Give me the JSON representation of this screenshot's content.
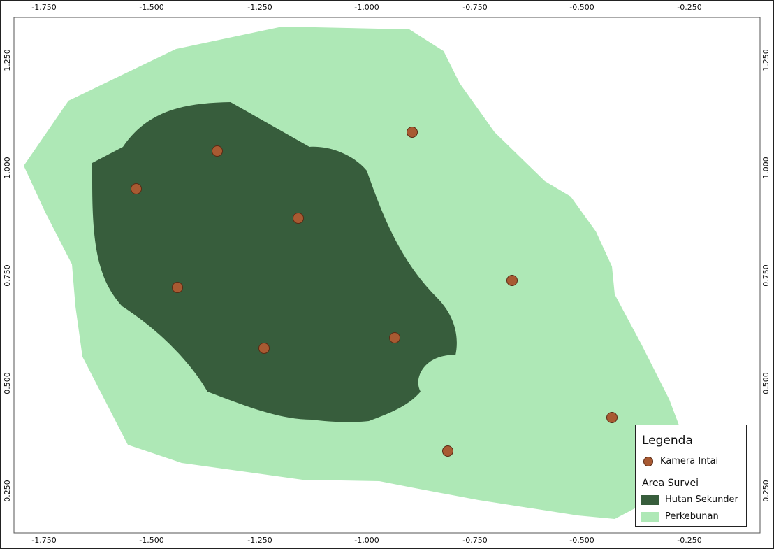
{
  "map": {
    "x_ticks": [
      "-1.750",
      "-1.500",
      "-1.250",
      "-1.000",
      "-0.750",
      "-0.500",
      "-0.250"
    ],
    "y_ticks": [
      "1.250",
      "1.000",
      "0.750",
      "0.500",
      "0.250"
    ]
  },
  "colors": {
    "perkebunan": "#aee8b6",
    "hutan_sekunder": "#375d3c",
    "kamera_intai": "#a85a32"
  },
  "camera_count": 10,
  "legend": {
    "title": "Legenda",
    "camera_label": "Kamera Intai",
    "area_title": "Area Survei",
    "hutan_label": "Hutan Sekunder",
    "kebun_label": "Perkebunan"
  }
}
